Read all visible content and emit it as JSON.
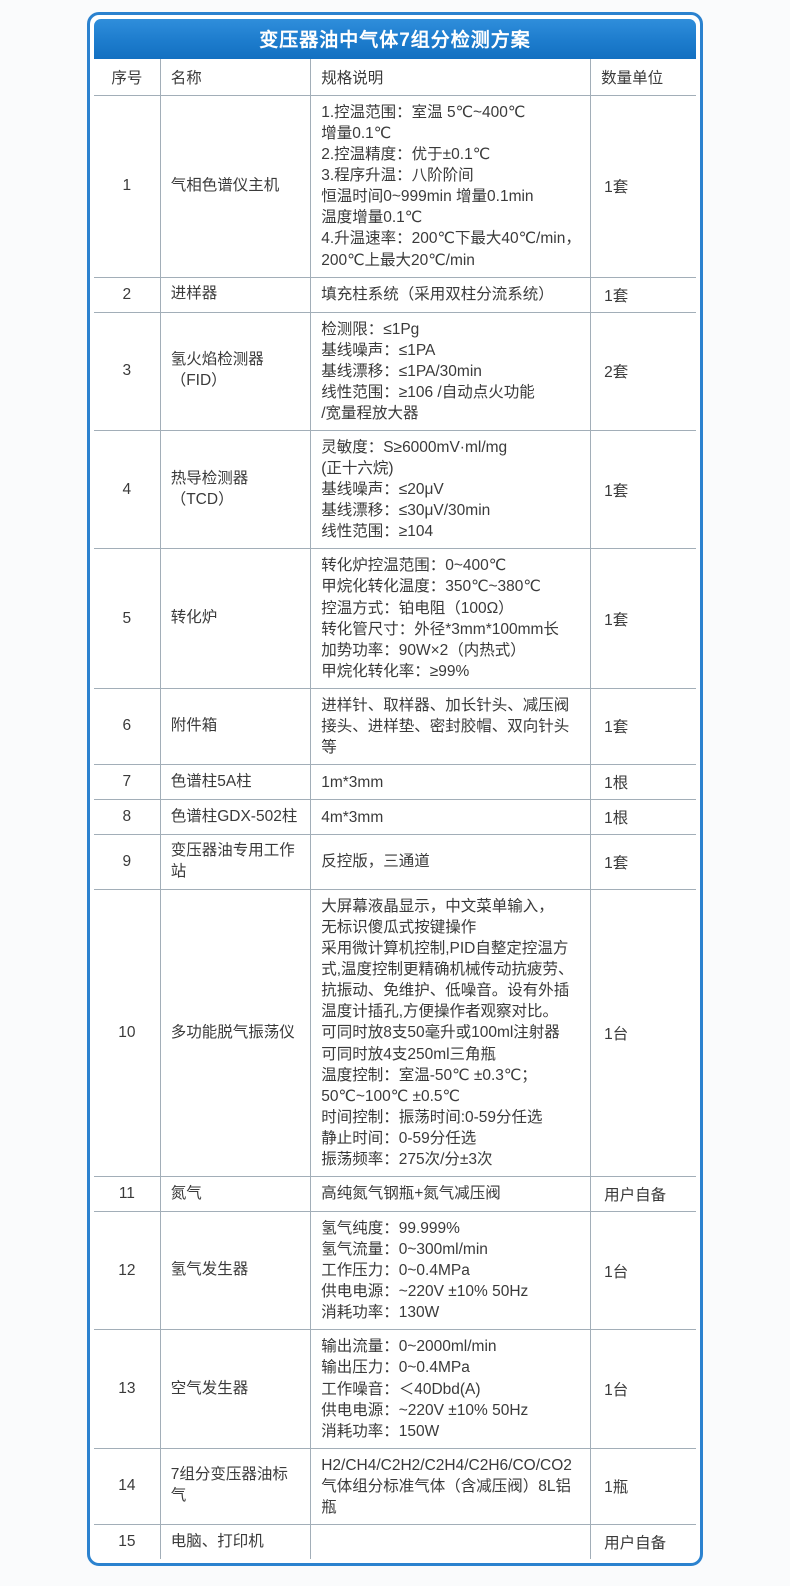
{
  "table": {
    "title": "变压器油中气体7组分检测方案",
    "headers": [
      "序号",
      "名称",
      "规格说明",
      "数量单位"
    ],
    "rows": [
      {
        "no": "1",
        "name": "气相色谱仪主机",
        "spec": "1.控温范围：室温 5℃~400℃\n增量0.1℃\n2.控温精度：优于±0.1℃\n3.程序升温：八阶阶间\n恒温时间0~999min 增量0.1min\n温度增量0.1℃\n4.升温速率：200℃下最大40℃/min，\n200℃上最大20℃/min",
        "qty": "1套"
      },
      {
        "no": "2",
        "name": "进样器",
        "spec": "填充柱系统（采用双柱分流系统）",
        "qty": "1套"
      },
      {
        "no": "3",
        "name": "氢火焰检测器（FID）",
        "spec": "检测限：≤1Pg\n基线噪声：≤1PA\n基线漂移：≤1PA/30min\n线性范围：≥106 /自动点火功能\n/宽量程放大器",
        "qty": "2套"
      },
      {
        "no": "4",
        "name": "热导检测器（TCD）",
        "spec": "灵敏度：S≥6000mV·ml/mg\n(正十六烷)\n基线噪声：≤20μV\n基线漂移：≤30μV/30min\n线性范围：≥104",
        "qty": "1套"
      },
      {
        "no": "5",
        "name": "转化炉",
        "spec": "转化炉控温范围：0~400℃\n甲烷化转化温度：350℃~380℃\n控温方式：铂电阻（100Ω）\n转化管尺寸：外径*3mm*100mm长\n加势功率：90W×2（内热式）\n甲烷化转化率：≥99%",
        "qty": "1套"
      },
      {
        "no": "6",
        "name": "附件箱",
        "spec": "进样针、取样器、加长针头、减压阀接头、进样垫、密封胶帽、双向针头等",
        "qty": "1套"
      },
      {
        "no": "7",
        "name": "色谱柱5A柱",
        "spec": "1m*3mm",
        "qty": "1根"
      },
      {
        "no": "8",
        "name": "色谱柱GDX-502柱",
        "spec": "4m*3mm",
        "qty": "1根"
      },
      {
        "no": "9",
        "name": "变压器油专用工作站",
        "spec": "反控版，三通道",
        "qty": "1套"
      },
      {
        "no": "10",
        "name": "多功能脱气振荡仪",
        "spec": "大屏幕液晶显示，中文菜单输入，\n无标识傻瓜式按键操作\n采用微计算机控制,PID自整定控温方式,温度控制更精确机械传动抗疲劳、抗振动、免维护、低噪音。设有外插温度计插孔,方便操作者观察对比。\n可同时放8支50毫升或100ml注射器\n可同时放4支250ml三角瓶\n温度控制：室温-50℃ ±0.3℃；\n 50℃~100℃ ±0.5℃\n时间控制：振荡时间:0-59分任选\n静止时间：0-59分任选\n振荡频率：275次/分±3次",
        "qty": "1台"
      },
      {
        "no": "11",
        "name": "氮气",
        "spec": "高纯氮气钢瓶+氮气减压阀",
        "qty": "用户自备"
      },
      {
        "no": "12",
        "name": "氢气发生器",
        "spec": "氢气纯度：99.999%\n氢气流量：0~300ml/min\n工作压力：0~0.4MPa\n供电电源：~220V ±10% 50Hz\n消耗功率：130W",
        "qty": "1台"
      },
      {
        "no": "13",
        "name": "空气发生器",
        "spec": "输出流量：0~2000ml/min\n输出压力：0~0.4MPa\n工作噪音：＜40Dbd(A)\n供电电源：~220V ±10% 50Hz\n消耗功率：150W",
        "qty": "1台"
      },
      {
        "no": "14",
        "name": "7组分变压器油标气",
        "spec": "H2/CH4/C2H2/C2H4/C2H6/CO/CO2\n气体组分标准气体（含减压阀）8L铝瓶",
        "qty": "1瓶"
      },
      {
        "no": "15",
        "name": "电脑、打印机",
        "spec": "",
        "qty": "用户自备"
      }
    ],
    "colors": {
      "accent_blue": "#1d7ccd",
      "border_blue": "#2b82cf",
      "grid_line": "#a2aeb8",
      "text": "#3a3a3a",
      "title_text": "#ffffff"
    }
  }
}
